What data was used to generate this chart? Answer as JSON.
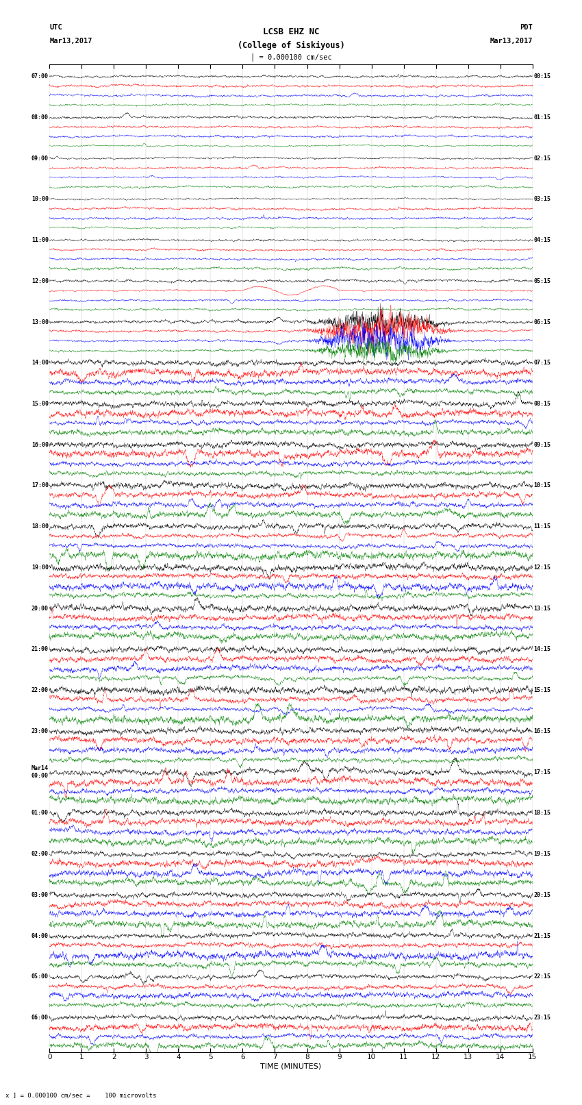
{
  "title_line1": "LCSB EHZ NC",
  "title_line2": "(College of Siskiyous)",
  "scale_text": "I = 0.000100 cm/sec",
  "bottom_label": "TIME (MINUTES)",
  "bottom_note": "x ] = 0.000100 cm/sec =    100 microvolts",
  "utc_label": "UTC",
  "utc_date": "Mar13,2017",
  "pdt_label": "PDT",
  "pdt_date": "Mar13,2017",
  "left_times_utc": [
    "07:00",
    "08:00",
    "09:00",
    "10:00",
    "11:00",
    "12:00",
    "13:00",
    "14:00",
    "15:00",
    "16:00",
    "17:00",
    "18:00",
    "19:00",
    "20:00",
    "21:00",
    "22:00",
    "23:00",
    "Mar14\n00:00",
    "01:00",
    "02:00",
    "03:00",
    "04:00",
    "05:00",
    "06:00"
  ],
  "right_times_pdt": [
    "00:15",
    "01:15",
    "02:15",
    "03:15",
    "04:15",
    "05:15",
    "06:15",
    "07:15",
    "08:15",
    "09:15",
    "10:15",
    "11:15",
    "12:15",
    "13:15",
    "14:15",
    "15:15",
    "16:15",
    "17:15",
    "18:15",
    "19:15",
    "20:15",
    "21:15",
    "22:15",
    "23:15"
  ],
  "n_rows": 24,
  "traces_per_row": 4,
  "colors": [
    "black",
    "red",
    "blue",
    "green"
  ],
  "xlim": [
    0,
    15
  ],
  "x_ticks": [
    0,
    1,
    2,
    3,
    4,
    5,
    6,
    7,
    8,
    9,
    10,
    11,
    12,
    13,
    14,
    15
  ],
  "fig_width": 8.5,
  "fig_height": 16.13,
  "dpi": 100,
  "bg_color": "white",
  "seed": 42
}
